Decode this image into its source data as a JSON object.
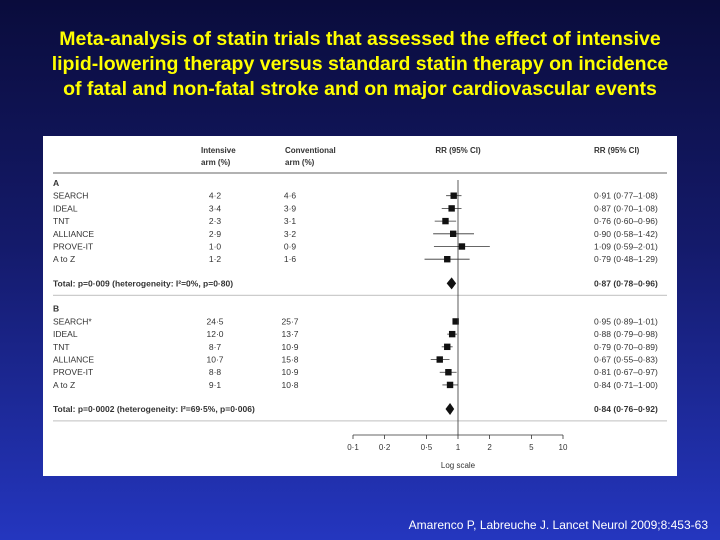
{
  "title": {
    "line1": "Meta-analysis of statin trials that assessed the effect of intensive",
    "line2": "lipid-lowering therapy versus standard statin therapy on incidence",
    "line3": "of fatal and non-fatal stroke and on major cardiovascular events"
  },
  "footer": "Amarenco P, Labreuche J. Lancet Neurol 2009;8:453-63",
  "chart_data": {
    "type": "forest",
    "columns": {
      "intensive": [
        "Intensive",
        "arm (%)"
      ],
      "conventional": [
        "Conventional",
        "arm (%)"
      ],
      "rr_plot": "RR (95% CI)",
      "rr_text": "RR (95% CI)"
    },
    "x_axis": {
      "scale": "log",
      "ticks": [
        0.1,
        0.2,
        0.5,
        1,
        2,
        5,
        10
      ],
      "tick_labels": [
        "0·1",
        "0·2",
        "0·5",
        "1",
        "2",
        "5",
        "10"
      ],
      "label": "Log scale",
      "range": [
        0.1,
        10
      ]
    },
    "sections": [
      {
        "label": "A",
        "rows": [
          {
            "name": "SEARCH",
            "intensive": "4·2",
            "conventional": "4·6",
            "rr": 0.91,
            "lo": 0.77,
            "hi": 1.08,
            "rr_text": "0·91 (0·77–1·08)"
          },
          {
            "name": "IDEAL",
            "intensive": "3·4",
            "conventional": "3·9",
            "rr": 0.87,
            "lo": 0.7,
            "hi": 1.08,
            "rr_text": "0·87 (0·70–1·08)"
          },
          {
            "name": "TNT",
            "intensive": "2·3",
            "conventional": "3·1",
            "rr": 0.76,
            "lo": 0.6,
            "hi": 0.96,
            "rr_text": "0·76 (0·60–0·96)"
          },
          {
            "name": "ALLIANCE",
            "intensive": "2·9",
            "conventional": "3·2",
            "rr": 0.9,
            "lo": 0.58,
            "hi": 1.42,
            "rr_text": "0·90 (0·58–1·42)"
          },
          {
            "name": "PROVE-IT",
            "intensive": "1·0",
            "conventional": "0·9",
            "rr": 1.09,
            "lo": 0.59,
            "hi": 2.01,
            "rr_text": "1·09 (0·59–2·01)"
          },
          {
            "name": "A to Z",
            "intensive": "1·2",
            "conventional": "1·6",
            "rr": 0.79,
            "lo": 0.48,
            "hi": 1.29,
            "rr_text": "0·79 (0·48–1·29)"
          }
        ],
        "total": {
          "label": "Total: p=0·009 (heterogeneity: I²=0%, p=0·80)",
          "rr": 0.87,
          "lo": 0.78,
          "hi": 0.96,
          "rr_text": "0·87 (0·78–0·96)"
        }
      },
      {
        "label": "B",
        "rows": [
          {
            "name": "SEARCH*",
            "intensive": "24·5",
            "conventional": "25·7",
            "rr": 0.95,
            "lo": 0.89,
            "hi": 1.01,
            "rr_text": "0·95 (0·89–1·01)"
          },
          {
            "name": "IDEAL",
            "intensive": "12·0",
            "conventional": "13·7",
            "rr": 0.88,
            "lo": 0.79,
            "hi": 0.98,
            "rr_text": "0·88 (0·79–0·98)"
          },
          {
            "name": "TNT",
            "intensive": "8·7",
            "conventional": "10·9",
            "rr": 0.79,
            "lo": 0.7,
            "hi": 0.89,
            "rr_text": "0·79 (0·70–0·89)"
          },
          {
            "name": "ALLIANCE",
            "intensive": "10·7",
            "conventional": "15·8",
            "rr": 0.67,
            "lo": 0.55,
            "hi": 0.83,
            "rr_text": "0·67 (0·55–0·83)"
          },
          {
            "name": "PROVE-IT",
            "intensive": "8·8",
            "conventional": "10·9",
            "rr": 0.81,
            "lo": 0.67,
            "hi": 0.97,
            "rr_text": "0·81 (0·67–0·97)"
          },
          {
            "name": "A to Z",
            "intensive": "9·1",
            "conventional": "10·8",
            "rr": 0.84,
            "lo": 0.71,
            "hi": 1.0,
            "rr_text": "0·84 (0·71–1·00)"
          }
        ],
        "total": {
          "label": "Total: p=0·0002 (heterogeneity: I²=69·5%, p=0·006)",
          "rr": 0.84,
          "lo": 0.76,
          "hi": 0.92,
          "rr_text": "0·84 (0·76–0·92)"
        }
      }
    ]
  }
}
